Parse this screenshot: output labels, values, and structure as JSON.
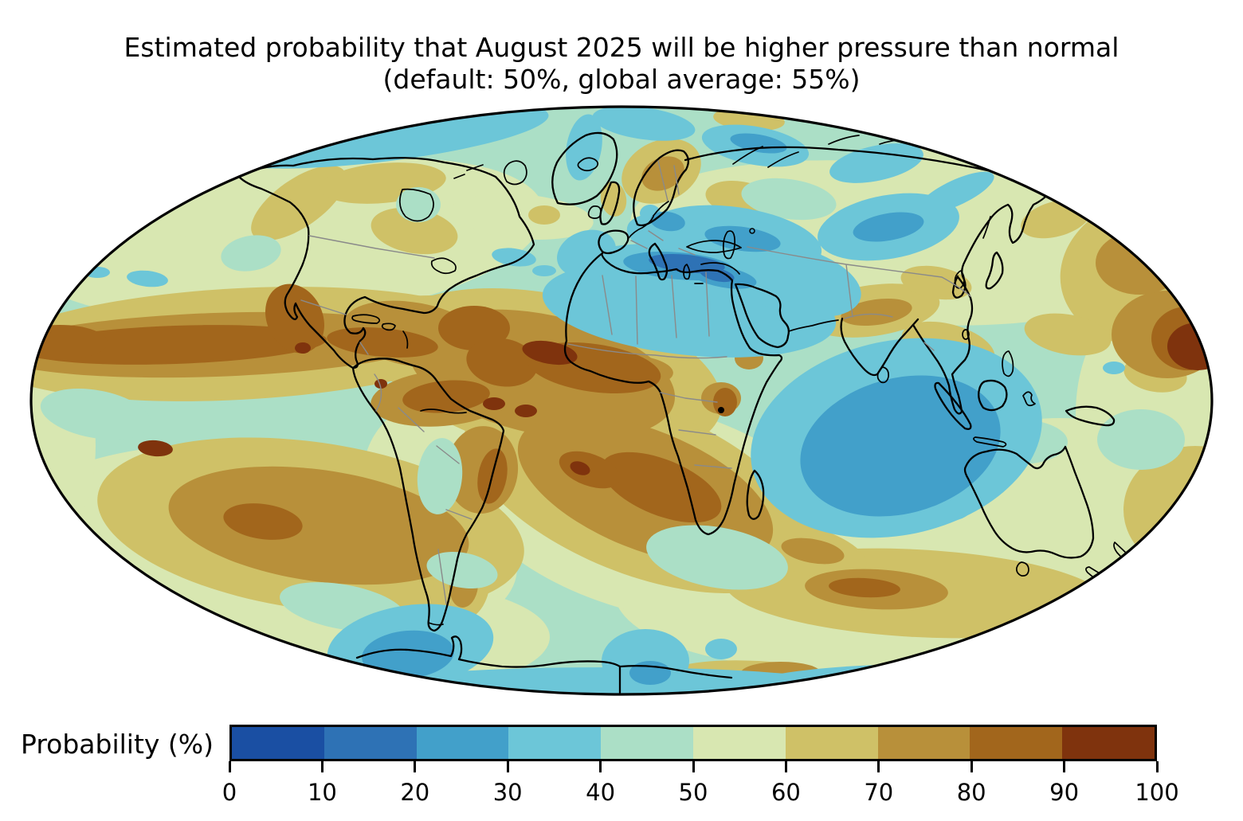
{
  "figure": {
    "title_line1": "Estimated probability that August 2025 will be higher pressure than normal",
    "title_line2": "(default: 50%, global average: 55%)"
  },
  "colorbar": {
    "label": "Probability (%)",
    "ticks": [
      "0",
      "10",
      "20",
      "30",
      "40",
      "50",
      "60",
      "70",
      "80",
      "90",
      "100"
    ],
    "segment_colors": [
      "#1a4fa3",
      "#2e72b5",
      "#42a0ca",
      "#6cc6d8",
      "#abdfc6",
      "#d8e7b1",
      "#cfc167",
      "#b8903a",
      "#a2661c",
      "#7f330d"
    ]
  },
  "chart_data": {
    "type": "heatmap",
    "subtype": "filled-contour world map (Mollweide projection ellipse)",
    "title": "Estimated probability that August 2025 will be higher pressure than normal",
    "subtitle": "(default: 50%, global average: 55%)",
    "legend_label": "Probability (%)",
    "units": "%",
    "levels": [
      0,
      10,
      20,
      30,
      40,
      50,
      60,
      70,
      80,
      90,
      100
    ],
    "palette": [
      "#1a4fa3",
      "#2e72b5",
      "#42a0ca",
      "#6cc6d8",
      "#abdfc6",
      "#d8e7b1",
      "#cfc167",
      "#b8903a",
      "#a2661c",
      "#7f330d"
    ],
    "default_value": 50,
    "global_average": 55,
    "legend_position": "bottom",
    "regions": [
      {
        "region": "North Pacific mid-latitude band (to Mexico)",
        "probability_pct": "80-90, spots 90-100"
      },
      {
        "region": "Tropical North Atlantic, Caribbean and Gulf of Mexico",
        "probability_pct": "70-90"
      },
      {
        "region": "West Africa / Gulf of Guinea coast",
        "probability_pct": "80-100"
      },
      {
        "region": "Northern South America / Amazon",
        "probability_pct": "70-90"
      },
      {
        "region": "South Atlantic subtropics",
        "probability_pct": "70-90, spots 90-100"
      },
      {
        "region": "South-central Pacific",
        "probability_pct": "60-80, spot 90-100"
      },
      {
        "region": "Mediterranean Sea (Italy-Greece core)",
        "probability_pct": "10-30"
      },
      {
        "region": "Sahara, Middle East and Black/Caspian Sea belt",
        "probability_pct": "30-50"
      },
      {
        "region": "Central/eastern Indian Ocean",
        "probability_pct": "20-40"
      },
      {
        "region": "Arabian Sea and Bay of Bengal",
        "probability_pct": "30-40"
      },
      {
        "region": "Siberia patches",
        "probability_pct": "20-40"
      },
      {
        "region": "Scandinavia, UK, NW India/Tibet, SE Asia patches",
        "probability_pct": "60-80"
      },
      {
        "region": "Southern Ocean south of Australia",
        "probability_pct": "60-90"
      },
      {
        "region": "NE Pacific near map edge",
        "probability_pct": "60-100"
      },
      {
        "region": "Antarctic coastal pockets (Bellingshausen, Ross)",
        "probability_pct": "20-40"
      },
      {
        "region": "Background mid-ocean areas",
        "probability_pct": "40-60"
      }
    ]
  }
}
